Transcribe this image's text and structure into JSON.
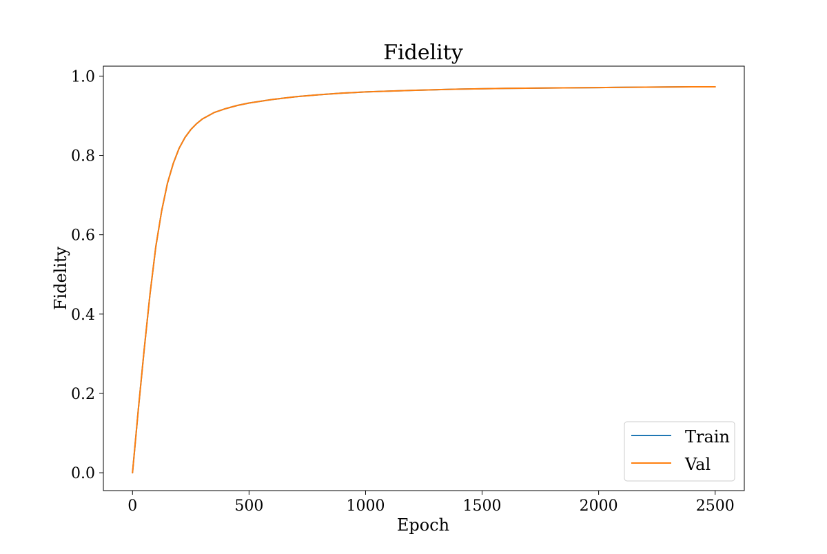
{
  "chart_data": {
    "type": "line",
    "title": "Fidelity",
    "xlabel": "Epoch",
    "ylabel": "Fidelity",
    "xlim": [
      -125,
      2625
    ],
    "ylim": [
      -0.045,
      1.025
    ],
    "xticks": [
      0,
      500,
      1000,
      1500,
      2000,
      2500
    ],
    "yticks": [
      0.0,
      0.2,
      0.4,
      0.6,
      0.8,
      1.0
    ],
    "xtick_labels": [
      "0",
      "500",
      "1000",
      "1500",
      "2000",
      "2500"
    ],
    "ytick_labels": [
      "0.0",
      "0.2",
      "0.4",
      "0.6",
      "0.8",
      "1.0"
    ],
    "grid": false,
    "legend_position": "bottom-right",
    "x": [
      0,
      25,
      50,
      75,
      100,
      125,
      150,
      175,
      200,
      225,
      250,
      275,
      300,
      350,
      400,
      450,
      500,
      600,
      700,
      800,
      900,
      1000,
      1200,
      1400,
      1600,
      1800,
      2000,
      2200,
      2400,
      2500
    ],
    "series": [
      {
        "name": "Train",
        "color": "#1f77b4",
        "values": [
          0.0,
          0.16,
          0.31,
          0.45,
          0.57,
          0.66,
          0.73,
          0.78,
          0.818,
          0.845,
          0.865,
          0.88,
          0.892,
          0.908,
          0.918,
          0.926,
          0.932,
          0.941,
          0.948,
          0.953,
          0.957,
          0.96,
          0.964,
          0.967,
          0.969,
          0.97,
          0.971,
          0.972,
          0.973,
          0.973
        ]
      },
      {
        "name": "Val",
        "color": "#ff7f0e",
        "values": [
          0.0,
          0.16,
          0.31,
          0.45,
          0.57,
          0.66,
          0.73,
          0.78,
          0.818,
          0.845,
          0.865,
          0.88,
          0.892,
          0.908,
          0.918,
          0.926,
          0.932,
          0.941,
          0.948,
          0.953,
          0.957,
          0.96,
          0.964,
          0.967,
          0.969,
          0.97,
          0.971,
          0.972,
          0.973,
          0.973
        ]
      }
    ]
  }
}
